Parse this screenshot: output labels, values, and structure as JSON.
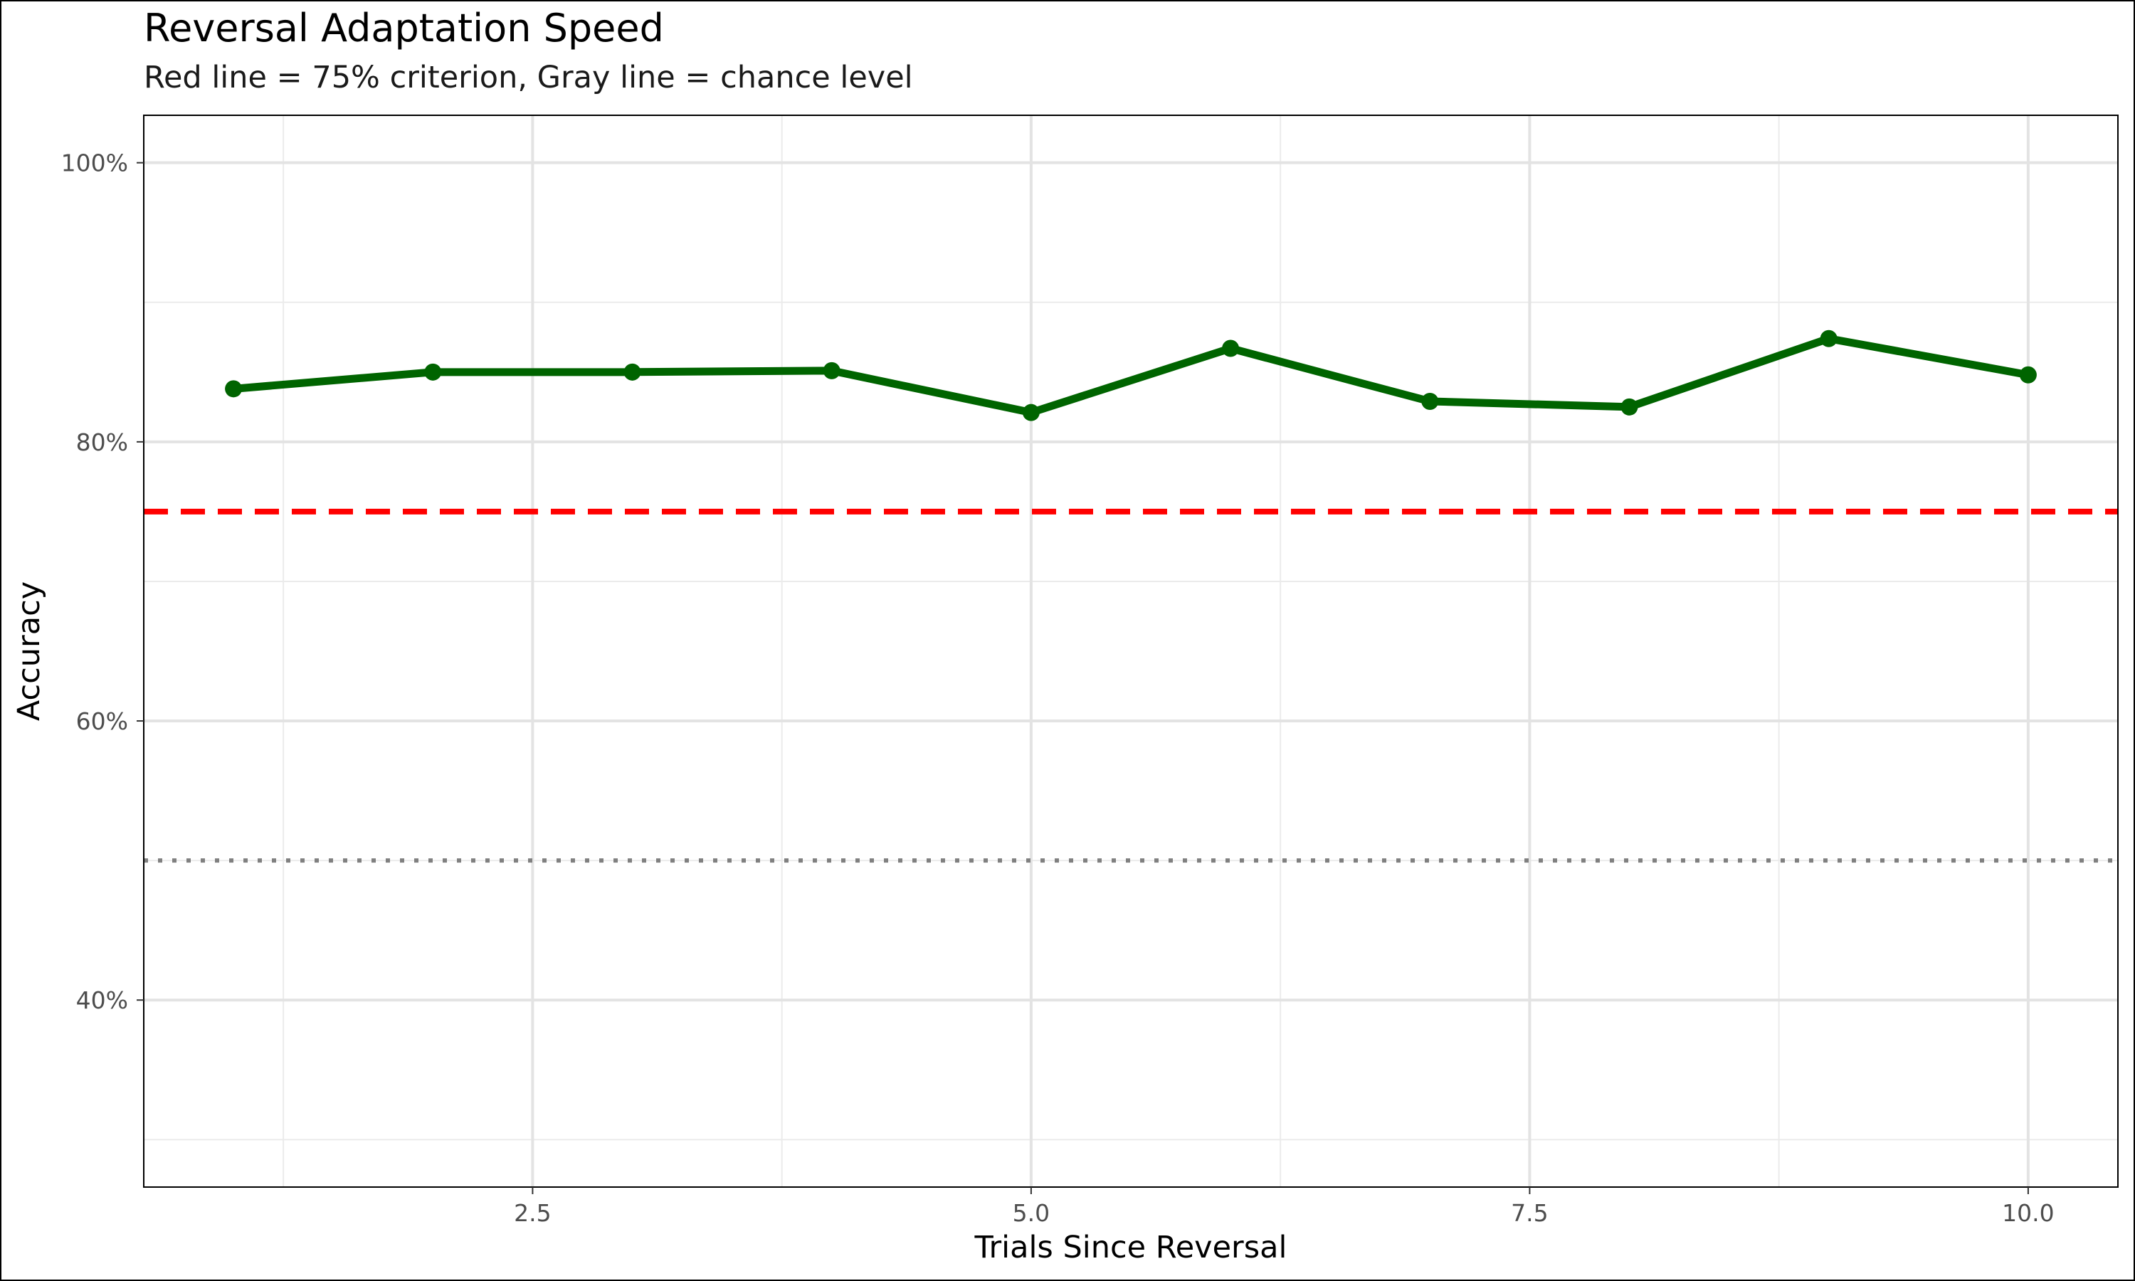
{
  "chart_data": {
    "type": "line",
    "title": "Reversal Adaptation Speed",
    "subtitle": "Red line = 75% criterion, Gray line = chance level",
    "xlabel": "Trials Since Reversal",
    "ylabel": "Accuracy",
    "x": [
      1,
      2,
      3,
      4,
      5,
      6,
      7,
      8,
      9,
      10
    ],
    "series": [
      {
        "values": [
          0.838,
          0.85,
          0.85,
          0.851,
          0.821,
          0.867,
          0.829,
          0.825,
          0.874,
          0.848
        ]
      }
    ],
    "reference_lines": [
      {
        "y": 0.75,
        "color": "#ff0000",
        "style": "dashed"
      },
      {
        "y": 0.5,
        "color": "#808080",
        "style": "dotted"
      }
    ],
    "xlim": [
      0.55,
      10.45
    ],
    "ylim": [
      0.266,
      1.034
    ],
    "x_ticks": [
      2.5,
      5.0,
      7.5,
      10.0
    ],
    "x_tick_labels": [
      "2.5",
      "5.0",
      "7.5",
      "10.0"
    ],
    "y_ticks": [
      0.4,
      0.6,
      0.8,
      1.0
    ],
    "y_tick_labels": [
      "40%",
      "60%",
      "80%",
      "100%"
    ],
    "grid": true,
    "colors": {
      "line": "#006400",
      "criterion": "#ff0000",
      "chance": "#808080"
    }
  }
}
